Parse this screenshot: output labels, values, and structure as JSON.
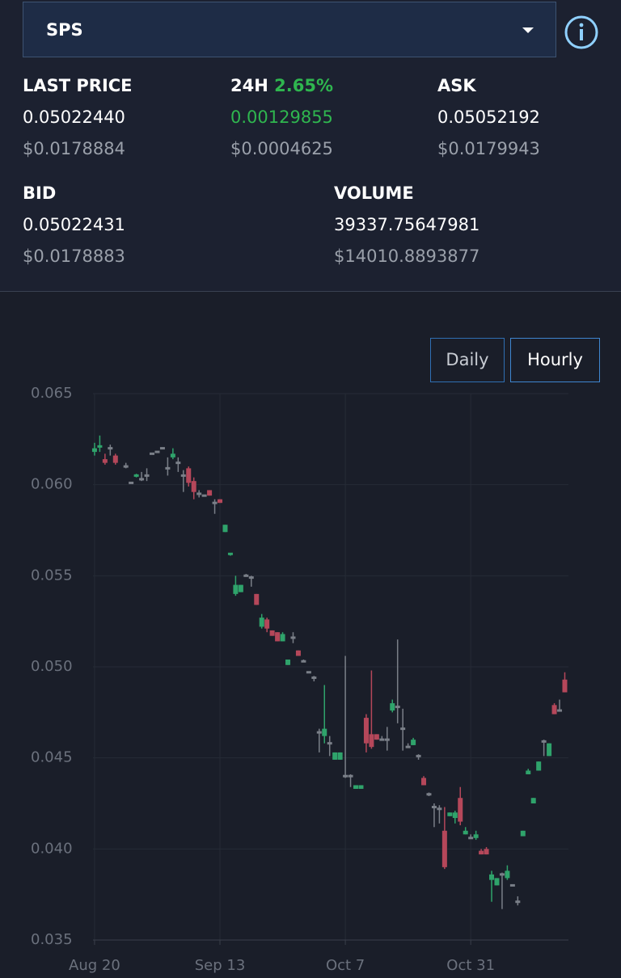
{
  "selector": {
    "value": "SPS"
  },
  "stats": {
    "last_price": {
      "label": "LAST PRICE",
      "value": "0.05022440",
      "usd": "$0.0178884"
    },
    "change_24h": {
      "label": "24H",
      "percent": "2.65%",
      "value": "0.00129855",
      "usd": "$0.0004625"
    },
    "ask": {
      "label": "ASK",
      "value": "0.05052192",
      "usd": "$0.0179943"
    },
    "bid": {
      "label": "BID",
      "value": "0.05022431",
      "usd": "$0.0178883"
    },
    "volume": {
      "label": "VOLUME",
      "value": "39337.75647981",
      "usd": "$14010.8893877"
    }
  },
  "buttons": [
    "Daily",
    "Hourly"
  ],
  "chart_data": {
    "type": "candlestick",
    "x": [
      0,
      1,
      2,
      3,
      4,
      6,
      7,
      8,
      9,
      10,
      11,
      12,
      13,
      14,
      15,
      16,
      17,
      18,
      19,
      20,
      21,
      22,
      23,
      24,
      25,
      26,
      27,
      28,
      29,
      30,
      31,
      32,
      33,
      34,
      35,
      36,
      37,
      38,
      39,
      40,
      41,
      42,
      43,
      44,
      45,
      46,
      47,
      48,
      49,
      50,
      51,
      52,
      53,
      54,
      55,
      56,
      57,
      58,
      59,
      60,
      61,
      62,
      63,
      64,
      65,
      66,
      67,
      68,
      69,
      70,
      71,
      72,
      73,
      74,
      75,
      76,
      77,
      78,
      79,
      80,
      81,
      82,
      83,
      84,
      85,
      86,
      87,
      88,
      89,
      90
    ],
    "open": [
      0.0618,
      0.062,
      0.0614,
      0.062,
      0.0616,
      0.061,
      0.0601,
      0.0604,
      0.0603,
      0.0605,
      0.0617,
      0.0618,
      0.062,
      0.0609,
      0.0615,
      0.0612,
      0.0605,
      0.0609,
      0.0602,
      0.0595,
      0.0594,
      0.0597,
      0.059,
      0.0592,
      0.0574,
      0.0561,
      0.054,
      0.0541,
      0.055,
      0.0549,
      0.054,
      0.0522,
      0.0526,
      0.052,
      0.0519,
      0.0514,
      0.0501,
      0.0516,
      0.0509,
      0.0503,
      0.0497,
      0.0494,
      0.0464,
      0.0462,
      0.0458,
      0.0449,
      0.0449,
      0.044,
      0.044,
      0.0433,
      0.0433,
      0.0472,
      0.0463,
      0.0463,
      0.046,
      0.046,
      0.0476,
      0.0478,
      0.0466,
      0.0456,
      0.0457,
      0.0451,
      0.0439,
      0.043,
      0.0423,
      0.0422,
      0.041,
      0.0418,
      0.0417,
      0.0428,
      0.0408,
      0.0406,
      0.0406,
      0.0399,
      0.04,
      0.0383,
      0.038,
      0.0386,
      0.0384,
      0.038,
      0.0371,
      0.0407,
      0.0441,
      0.0425,
      0.0443,
      0.0459,
      0.0451,
      0.0479,
      0.0476,
      0.0493
    ],
    "high": [
      0.0623,
      0.0627,
      0.0617,
      0.0622,
      0.0617,
      0.0612,
      0.0601,
      0.0606,
      0.0607,
      0.0609,
      0.0617,
      0.0618,
      0.062,
      0.0615,
      0.062,
      0.0615,
      0.0608,
      0.061,
      0.0604,
      0.0597,
      0.0594,
      0.0597,
      0.0592,
      0.0592,
      0.0578,
      0.0562,
      0.055,
      0.0545,
      0.0551,
      0.055,
      0.054,
      0.0529,
      0.0527,
      0.052,
      0.0519,
      0.0519,
      0.0504,
      0.0519,
      0.0509,
      0.0504,
      0.0497,
      0.0495,
      0.0466,
      0.049,
      0.0462,
      0.0453,
      0.0453,
      0.0506,
      0.0441,
      0.0435,
      0.0435,
      0.0474,
      0.0498,
      0.0463,
      0.0462,
      0.0467,
      0.0482,
      0.0515,
      0.0477,
      0.0458,
      0.0461,
      0.0452,
      0.044,
      0.0431,
      0.0425,
      0.0424,
      0.0423,
      0.042,
      0.0421,
      0.0434,
      0.0412,
      0.0408,
      0.041,
      0.04,
      0.0401,
      0.0388,
      0.0384,
      0.0387,
      0.0391,
      0.038,
      0.0374,
      0.041,
      0.0444,
      0.0428,
      0.0448,
      0.046,
      0.0458,
      0.048,
      0.0482,
      0.0497
    ],
    "low": [
      0.0616,
      0.0618,
      0.0611,
      0.0616,
      0.0611,
      0.0609,
      0.0601,
      0.0604,
      0.0602,
      0.0602,
      0.0617,
      0.0618,
      0.062,
      0.0605,
      0.0614,
      0.0607,
      0.0596,
      0.0599,
      0.0592,
      0.0593,
      0.0594,
      0.0594,
      0.0584,
      0.059,
      0.0574,
      0.0561,
      0.0539,
      0.0541,
      0.055,
      0.0544,
      0.0534,
      0.0521,
      0.0519,
      0.0517,
      0.0514,
      0.0514,
      0.0501,
      0.0513,
      0.0506,
      0.0503,
      0.0497,
      0.0492,
      0.0453,
      0.0458,
      0.0451,
      0.0449,
      0.0449,
      0.0439,
      0.0434,
      0.0433,
      0.0433,
      0.0453,
      0.0455,
      0.046,
      0.046,
      0.0454,
      0.0475,
      0.0469,
      0.0454,
      0.0456,
      0.0457,
      0.0449,
      0.0435,
      0.0429,
      0.0412,
      0.0414,
      0.0389,
      0.0418,
      0.0414,
      0.0413,
      0.0408,
      0.0406,
      0.0405,
      0.0397,
      0.0397,
      0.0371,
      0.038,
      0.0367,
      0.0383,
      0.038,
      0.0369,
      0.0407,
      0.0441,
      0.0425,
      0.0443,
      0.0451,
      0.0451,
      0.0474,
      0.0476,
      0.0486
    ],
    "close": [
      0.062,
      0.0621,
      0.0612,
      0.062,
      0.0612,
      0.061,
      0.0601,
      0.0605,
      0.0603,
      0.0605,
      0.0617,
      0.0618,
      0.062,
      0.0609,
      0.0617,
      0.0612,
      0.0605,
      0.0601,
      0.0596,
      0.0595,
      0.0594,
      0.0594,
      0.059,
      0.059,
      0.0578,
      0.0562,
      0.0545,
      0.0545,
      0.055,
      0.0549,
      0.0534,
      0.0527,
      0.0521,
      0.0517,
      0.0514,
      0.0518,
      0.0504,
      0.0516,
      0.0506,
      0.0503,
      0.0497,
      0.0494,
      0.0464,
      0.0466,
      0.0458,
      0.0453,
      0.0453,
      0.044,
      0.044,
      0.0435,
      0.0435,
      0.0458,
      0.0456,
      0.046,
      0.046,
      0.046,
      0.048,
      0.0478,
      0.0466,
      0.0456,
      0.046,
      0.0451,
      0.0435,
      0.043,
      0.0423,
      0.0422,
      0.039,
      0.042,
      0.042,
      0.0415,
      0.041,
      0.0406,
      0.0408,
      0.0397,
      0.0397,
      0.0386,
      0.0384,
      0.0386,
      0.0388,
      0.038,
      0.0371,
      0.041,
      0.0443,
      0.0428,
      0.0448,
      0.0459,
      0.0458,
      0.0474,
      0.0476,
      0.0486
    ],
    "up_color": "#2fa36b",
    "down_color": "#b5475a",
    "flat_color": "#7a7f88",
    "xlim": [
      -0.3,
      90.7
    ],
    "ylim": [
      0.035,
      0.065
    ],
    "yticks": [
      0.035,
      {
        "value": 0.04,
        "label": "0.040"
      },
      0.045,
      {
        "value": 0.05,
        "label": "0.050"
      },
      0.055,
      {
        "value": 0.06,
        "label": "0.060"
      },
      0.065
    ],
    "xticks": [
      {
        "value": 0,
        "label": "Aug 20"
      },
      {
        "value": 24,
        "label": "Sep 13"
      },
      {
        "value": 48,
        "label": "Oct 7"
      },
      {
        "value": 72,
        "label": "Oct 31"
      }
    ],
    "grid": true
  }
}
